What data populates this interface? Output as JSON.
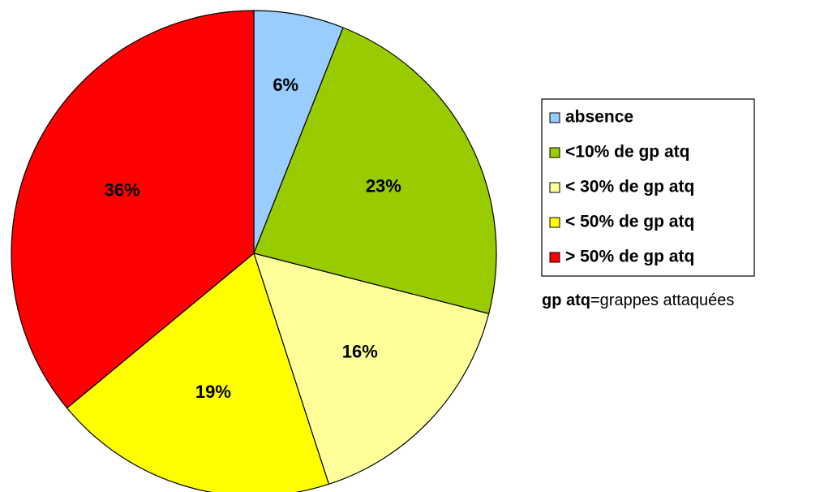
{
  "chart_data": {
    "type": "pie",
    "categories": [
      "absence",
      "<10% de gp atq",
      "< 30% de gp atq",
      "< 50% de gp atq",
      "> 50% de gp atq"
    ],
    "values": [
      6,
      23,
      16,
      19,
      36
    ],
    "value_labels": [
      "6%",
      "23%",
      "16%",
      "19%",
      "36%"
    ],
    "colors": [
      "#99ccff",
      "#99cc00",
      "#ffff99",
      "#ffff00",
      "#ff0000"
    ],
    "legend": "right",
    "note": {
      "term": "gp atq",
      "definition": "=grappes attaquées"
    }
  }
}
